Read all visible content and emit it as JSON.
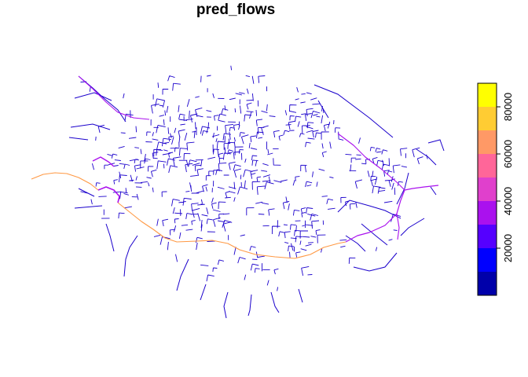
{
  "title": "pred_flows",
  "legend": {
    "ticks": [
      {
        "value": 20000,
        "label": "20000"
      },
      {
        "value": 40000,
        "label": "40000"
      },
      {
        "value": 60000,
        "label": "60000"
      },
      {
        "value": 80000,
        "label": "80000"
      }
    ],
    "range": [
      0,
      90000
    ],
    "bins": [
      {
        "from": 0,
        "to": 10000,
        "color": "#0000aa"
      },
      {
        "from": 10000,
        "to": 20000,
        "color": "#0000ff"
      },
      {
        "from": 20000,
        "to": 30000,
        "color": "#5500ff"
      },
      {
        "from": 30000,
        "to": 40000,
        "color": "#aa11ee"
      },
      {
        "from": 40000,
        "to": 50000,
        "color": "#e040cc"
      },
      {
        "from": 50000,
        "to": 60000,
        "color": "#ff6699"
      },
      {
        "from": 60000,
        "to": 70000,
        "color": "#ff9966"
      },
      {
        "from": 70000,
        "to": 80000,
        "color": "#ffcc33"
      },
      {
        "from": 80000,
        "to": 90000,
        "color": "#ffff00"
      }
    ]
  },
  "colors": {
    "low_flow": "#1a00cc",
    "mid_flow": "#aa11ee",
    "high_flow": "#ff9944"
  }
}
